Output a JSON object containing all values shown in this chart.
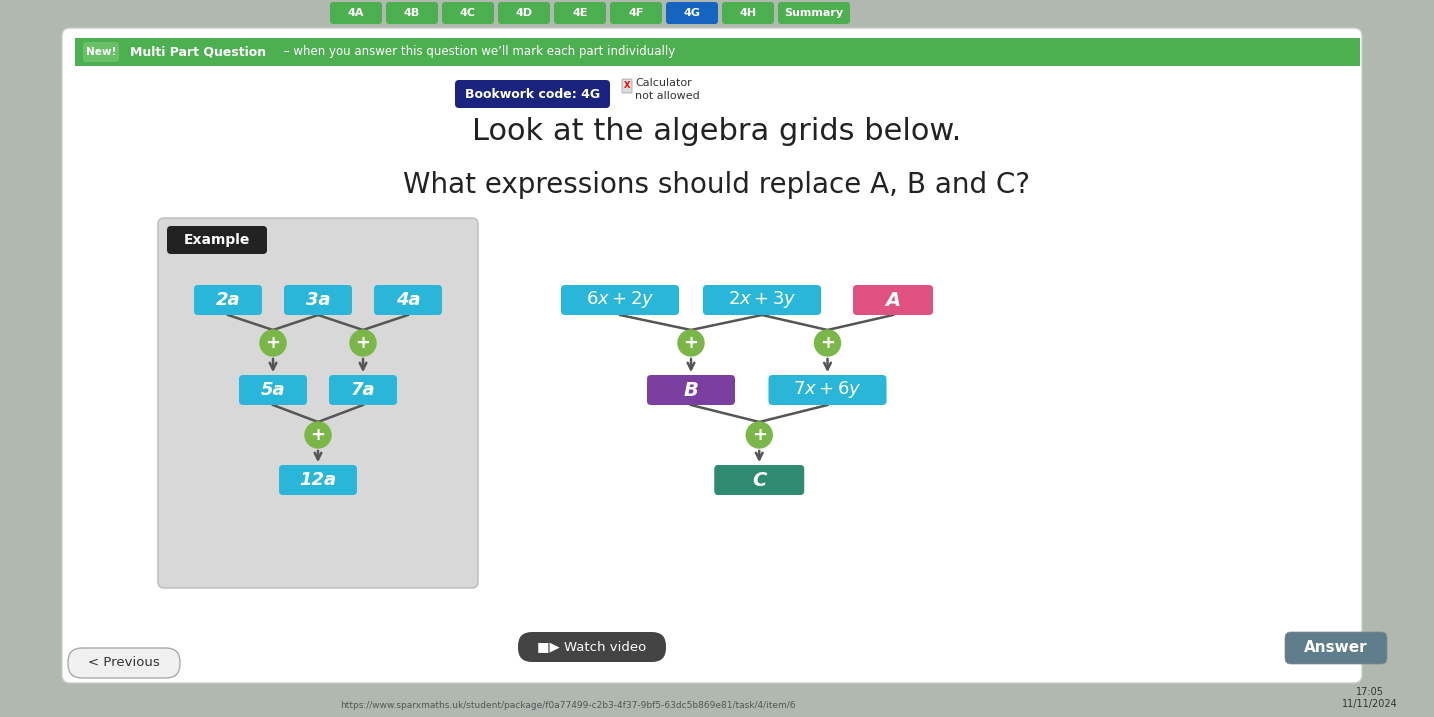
{
  "bg_color": "#b0b8b0",
  "main_bg": "#ffffff",
  "green_banner_color": "#4caf50",
  "new_badge_color": "#6abf69",
  "bookwork_btn_color": "#1a237e",
  "answer_btn_color": "#607d8b",
  "node_cyan": "#29b6d8",
  "node_purple": "#7b3fa0",
  "node_pink": "#e05080",
  "node_teal": "#2e8b72",
  "node_green_circle": "#7ab648",
  "arrow_color": "#555555",
  "example_bg": "#d8d8d8",
  "example_label_bg": "#222222",
  "heading1": "Look at the algebra grids below.",
  "heading2": "What expressions should replace A, B and C?",
  "nav_tabs": [
    "4A",
    "4B",
    "4C",
    "4D",
    "4E",
    "4F",
    "4G",
    "4H",
    "Summary"
  ],
  "nav_active_idx": 6,
  "nav_active_color": "#1565c0",
  "nav_inactive_color": "#4caf50",
  "watch_video_bg": "#333333",
  "prev_btn_bg": "#eeeeee"
}
